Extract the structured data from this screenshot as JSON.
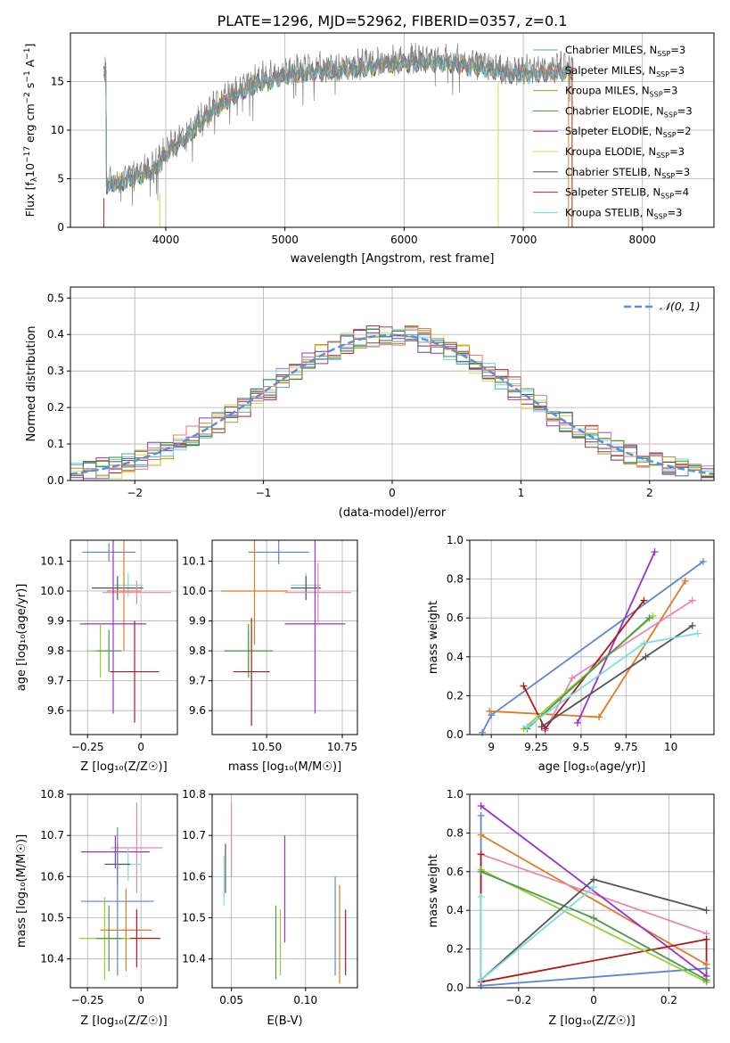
{
  "title": "PLATE=1296, MJD=52962, FIBERID=0357, z=0.1",
  "colors": {
    "chabrier_miles": "#5b9fcf",
    "salpeter_miles": "#e07a7a",
    "kroupa_miles": "#c98c2a",
    "chabrier_elodie": "#3f8f3f",
    "salpeter_elodie": "#9b30b8",
    "kroupa_elodie": "#d8d84a",
    "chabrier_stelib": "#555555",
    "salpeter_stelib": "#b22222",
    "kroupa_stelib": "#6fd6dc",
    "gauss": "#5b8fd6",
    "royal": "#5b86d6",
    "orange": "#e07a20",
    "pink": "#e985b5",
    "violet": "#9932cc",
    "darkred": "#b01818",
    "lime": "#9acd32",
    "green": "#4a9a4a",
    "teal": "#2aa7a7",
    "gray": "#555555",
    "cyan": "#7adfe0"
  },
  "chart_data": [
    {
      "type": "line",
      "title": "PLATE=1296, MJD=52962, FIBERID=0357, z=0.1",
      "xlabel": "wavelength [Angstrom, rest frame]",
      "ylabel": "Flux [f_λ10^-17 erg cm^-2 s^-1 A^-1]",
      "xlim": [
        3200,
        8600
      ],
      "ylim": [
        0,
        20
      ],
      "xticks": [
        4000,
        5000,
        6000,
        7000,
        8000
      ],
      "yticks": [
        0,
        5,
        10,
        15
      ],
      "legend_position": "right",
      "legend": [
        {
          "base": "Chabrier MILES, N",
          "sub": "SSP",
          "tail": "=3",
          "color": "chabrier_miles"
        },
        {
          "base": "Salpeter MILES, N",
          "sub": "SSP",
          "tail": "=3",
          "color": "salpeter_miles"
        },
        {
          "base": "Kroupa MILES, N",
          "sub": "SSP",
          "tail": "=3",
          "color": "kroupa_miles"
        },
        {
          "base": "Chabrier ELODIE, N",
          "sub": "SSP",
          "tail": "=3",
          "color": "chabrier_elodie"
        },
        {
          "base": "Salpeter ELODIE, N",
          "sub": "SSP",
          "tail": "=2",
          "color": "salpeter_elodie"
        },
        {
          "base": "Kroupa ELODIE, N",
          "sub": "SSP",
          "tail": "=3",
          "color": "kroupa_elodie"
        },
        {
          "base": "Chabrier STELIB, N",
          "sub": "SSP",
          "tail": "=3",
          "color": "chabrier_stelib"
        },
        {
          "base": "Salpeter STELIB, N",
          "sub": "SSP",
          "tail": "=4",
          "color": "salpeter_stelib"
        },
        {
          "base": "Kroupa STELIB, N",
          "sub": "SSP",
          "tail": "=3",
          "color": "kroupa_stelib"
        }
      ],
      "continuum": [
        [
          3500,
          4.6
        ],
        [
          3700,
          5.4
        ],
        [
          3900,
          6.2
        ],
        [
          4000,
          8.0
        ],
        [
          4200,
          10.0
        ],
        [
          4400,
          12.5
        ],
        [
          4600,
          14.2
        ],
        [
          4800,
          15.4
        ],
        [
          5000,
          16.0
        ],
        [
          5200,
          16.4
        ],
        [
          5500,
          16.6
        ],
        [
          5800,
          17.1
        ],
        [
          6100,
          17.4
        ],
        [
          6400,
          17.3
        ],
        [
          6700,
          16.8
        ],
        [
          6900,
          16.2
        ],
        [
          7100,
          16.3
        ],
        [
          7400,
          16.5
        ]
      ],
      "spikes": [
        {
          "x": 3480,
          "y0": 0,
          "y1": 3.0,
          "color": "salpeter_stelib"
        },
        {
          "x": 3950,
          "y0": 0,
          "y1": 3.5,
          "color": "kroupa_elodie"
        },
        {
          "x": 6790,
          "y0": 0,
          "y1": 15.0,
          "color": "kroupa_elodie"
        },
        {
          "x": 7410,
          "y0": 0,
          "y1": 16.5,
          "color": "salpeter_stelib"
        },
        {
          "x": 7380,
          "y0": 0,
          "y1": 16.0,
          "color": "kroupa_miles"
        }
      ]
    },
    {
      "type": "line",
      "xlabel": "(data-model)/error",
      "ylabel": "Normed distribution",
      "xlim": [
        -2.5,
        2.5
      ],
      "ylim": [
        0,
        0.53
      ],
      "xticks": [
        -2,
        -1,
        0,
        1,
        2
      ],
      "yticks": [
        0.0,
        0.1,
        0.2,
        0.3,
        0.4,
        0.5
      ],
      "legend": "𝒩(0, 1)",
      "legend_position": "top-right",
      "bin_width": 0.1,
      "bins_start": -2.5,
      "histograms": [
        {
          "color": "salpeter_elodie",
          "amp": 0.4,
          "sigma": 1.0,
          "noise": 0.035,
          "seed": 3
        },
        {
          "color": "salpeter_stelib",
          "amp": 0.4,
          "sigma": 0.98,
          "noise": 0.03,
          "seed": 7
        },
        {
          "color": "kroupa_elodie",
          "amp": 0.41,
          "sigma": 0.96,
          "noise": 0.035,
          "seed": 11
        },
        {
          "color": "kroupa_miles",
          "amp": 0.4,
          "sigma": 1.0,
          "noise": 0.03,
          "seed": 13
        },
        {
          "color": "chabrier_miles",
          "amp": 0.4,
          "sigma": 1.0,
          "noise": 0.03,
          "seed": 17
        },
        {
          "color": "kroupa_stelib",
          "amp": 0.4,
          "sigma": 0.99,
          "noise": 0.03,
          "seed": 19
        },
        {
          "color": "chabrier_stelib",
          "amp": 0.39,
          "sigma": 1.01,
          "noise": 0.03,
          "seed": 23
        },
        {
          "color": "chabrier_elodie",
          "amp": 0.4,
          "sigma": 1.0,
          "noise": 0.025,
          "seed": 29
        },
        {
          "color": "salpeter_miles",
          "amp": 0.4,
          "sigma": 1.0,
          "noise": 0.03,
          "seed": 31
        }
      ]
    },
    {
      "type": "scatter",
      "xlabel": "Z [log₁₀(Z/Z☉)]",
      "ylabel": "age  [log₁₀(age/yr)]",
      "xlim": [
        -0.33,
        0.17
      ],
      "ylim": [
        9.52,
        10.17
      ],
      "xticks": [
        -0.25,
        0.0
      ],
      "yticks": [
        9.6,
        9.7,
        9.8,
        9.9,
        10.0,
        10.1
      ],
      "errbars": [
        {
          "x": -0.15,
          "y": 10.13,
          "xerr": 0.125,
          "yerr": 0.03,
          "color": "royal"
        },
        {
          "x": -0.06,
          "y": 10.02,
          "xerr": 0.07,
          "yerr": 0.04,
          "color": "cyan"
        },
        {
          "x": -0.11,
          "y": 10.01,
          "xerr": 0.12,
          "yerr": 0.04,
          "color": "gray"
        },
        {
          "x": -0.08,
          "y": 10.0,
          "xerr": 0.08,
          "yerr": 0.2,
          "color": "orange"
        },
        {
          "x": -0.02,
          "y": 9.995,
          "xerr": 0.16,
          "yerr": 0.04,
          "color": "pink"
        },
        {
          "x": -0.13,
          "y": 9.89,
          "xerr": 0.155,
          "yerr": 0.3,
          "color": "violet"
        },
        {
          "x": -0.19,
          "y": 9.8,
          "xerr": 0.06,
          "yerr": 0.09,
          "color": "lime"
        },
        {
          "x": -0.15,
          "y": 9.8,
          "xerr": 0.06,
          "yerr": 0.07,
          "color": "green"
        },
        {
          "x": -0.03,
          "y": 9.73,
          "xerr": 0.115,
          "yerr": 0.17,
          "color": "darkred"
        }
      ]
    },
    {
      "type": "scatter",
      "xlabel": "mass [log₁₀(M/M☉)]",
      "ylabel": "",
      "xlim": [
        10.32,
        10.8
      ],
      "ylim": [
        9.52,
        10.17
      ],
      "xticks": [
        10.5,
        10.75
      ],
      "yticks": [
        9.6,
        9.7,
        9.8,
        9.9,
        10.0,
        10.1
      ],
      "errbars": [
        {
          "x": 10.54,
          "y": 10.13,
          "xerr": 0.1,
          "yerr": 0.04,
          "color": "royal"
        },
        {
          "x": 10.63,
          "y": 10.02,
          "xerr": 0.05,
          "yerr": 0.04,
          "color": "cyan"
        },
        {
          "x": 10.63,
          "y": 10.01,
          "xerr": 0.05,
          "yerr": 0.04,
          "color": "gray"
        },
        {
          "x": 10.46,
          "y": 10.0,
          "xerr": 0.11,
          "yerr": 0.18,
          "color": "orange"
        },
        {
          "x": 10.67,
          "y": 9.995,
          "xerr": 0.11,
          "yerr": 0.1,
          "color": "pink"
        },
        {
          "x": 10.66,
          "y": 9.89,
          "xerr": 0.1,
          "yerr": 0.3,
          "color": "violet"
        },
        {
          "x": 10.44,
          "y": 9.8,
          "xerr": 0.08,
          "yerr": 0.07,
          "color": "lime"
        },
        {
          "x": 10.44,
          "y": 9.8,
          "xerr": 0.08,
          "yerr": 0.09,
          "color": "green"
        },
        {
          "x": 10.45,
          "y": 9.73,
          "xerr": 0.06,
          "yerr": 0.18,
          "color": "darkred"
        }
      ]
    },
    {
      "type": "line",
      "xlabel": "age  [log₁₀(age/yr)]",
      "ylabel": "mass weight",
      "xlim": [
        8.88,
        10.24
      ],
      "ylim": [
        0,
        1.0
      ],
      "xticks": [
        9.0,
        9.25,
        9.5,
        9.75,
        10.0
      ],
      "yticks": [
        0.0,
        0.2,
        0.4,
        0.6,
        0.8,
        1.0
      ],
      "series": [
        {
          "color": "royal",
          "points": [
            [
              8.95,
              0.01
            ],
            [
              9.0,
              0.1
            ],
            [
              10.18,
              0.89
            ]
          ]
        },
        {
          "color": "orange",
          "points": [
            [
              8.99,
              0.12
            ],
            [
              9.6,
              0.09
            ],
            [
              10.08,
              0.79
            ]
          ]
        },
        {
          "color": "pink",
          "points": [
            [
              9.3,
              0.02
            ],
            [
              9.45,
              0.29
            ],
            [
              10.12,
              0.69
            ]
          ]
        },
        {
          "color": "violet",
          "points": [
            [
              9.48,
              0.06
            ],
            [
              9.91,
              0.94
            ]
          ]
        },
        {
          "color": "darkred",
          "points": [
            [
              9.18,
              0.25
            ],
            [
              9.3,
              0.03
            ],
            [
              9.85,
              0.69
            ]
          ]
        },
        {
          "color": "lime",
          "points": [
            [
              9.18,
              0.03
            ],
            [
              9.9,
              0.61
            ]
          ]
        },
        {
          "color": "green",
          "points": [
            [
              9.2,
              0.03
            ],
            [
              9.88,
              0.6
            ]
          ]
        },
        {
          "color": "gray",
          "points": [
            [
              9.28,
              0.04
            ],
            [
              9.86,
              0.4
            ],
            [
              10.12,
              0.56
            ]
          ]
        },
        {
          "color": "cyan",
          "points": [
            [
              9.2,
              0.04
            ],
            [
              9.85,
              0.47
            ],
            [
              10.15,
              0.52
            ]
          ]
        }
      ]
    },
    {
      "type": "scatter",
      "xlabel": "Z [log₁₀(Z/Z☉)]",
      "ylabel": "mass [log₁₀(M/M☉)]",
      "xlim": [
        -0.33,
        0.17
      ],
      "ylim": [
        10.33,
        10.8
      ],
      "xticks": [
        -0.25,
        0.0
      ],
      "yticks": [
        10.4,
        10.5,
        10.6,
        10.7,
        10.8
      ],
      "errbars": [
        {
          "x": -0.02,
          "y": 10.67,
          "xerr": 0.12,
          "yerr": 0.11,
          "color": "pink"
        },
        {
          "x": -0.12,
          "y": 10.66,
          "xerr": 0.16,
          "yerr": 0.04,
          "color": "violet"
        },
        {
          "x": -0.06,
          "y": 10.63,
          "xerr": 0.06,
          "yerr": 0.04,
          "color": "cyan"
        },
        {
          "x": -0.11,
          "y": 10.63,
          "xerr": 0.06,
          "yerr": 0.05,
          "color": "gray"
        },
        {
          "x": -0.11,
          "y": 10.54,
          "xerr": 0.17,
          "yerr": 0.18,
          "color": "royal"
        },
        {
          "x": -0.07,
          "y": 10.47,
          "xerr": 0.12,
          "yerr": 0.1,
          "color": "orange"
        },
        {
          "x": -0.02,
          "y": 10.45,
          "xerr": 0.11,
          "yerr": 0.07,
          "color": "darkred"
        },
        {
          "x": -0.17,
          "y": 10.45,
          "xerr": 0.12,
          "yerr": 0.1,
          "color": "lime"
        },
        {
          "x": -0.15,
          "y": 10.45,
          "xerr": 0.06,
          "yerr": 0.08,
          "color": "green"
        }
      ]
    },
    {
      "type": "scatter",
      "xlabel": "E(B-V)",
      "ylabel": "",
      "xlim": [
        0.037,
        0.135
      ],
      "ylim": [
        10.33,
        10.8
      ],
      "xticks": [
        0.05,
        0.1
      ],
      "yticks": [
        10.4,
        10.5,
        10.6,
        10.7,
        10.8
      ],
      "errbars": [
        {
          "x": 0.05,
          "y": 10.69,
          "xerr": 0,
          "yerr": 0.09,
          "color": "pink"
        },
        {
          "x": 0.046,
          "y": 10.62,
          "xerr": 0,
          "yerr": 0.06,
          "color": "gray"
        },
        {
          "x": 0.045,
          "y": 10.59,
          "xerr": 0,
          "yerr": 0.06,
          "color": "cyan"
        },
        {
          "x": 0.086,
          "y": 10.57,
          "xerr": 0,
          "yerr": 0.13,
          "color": "violet"
        },
        {
          "x": 0.08,
          "y": 10.44,
          "xerr": 0,
          "yerr": 0.09,
          "color": "green"
        },
        {
          "x": 0.083,
          "y": 10.44,
          "xerr": 0,
          "yerr": 0.08,
          "color": "lime"
        },
        {
          "x": 0.12,
          "y": 10.48,
          "xerr": 0,
          "yerr": 0.12,
          "color": "royal"
        },
        {
          "x": 0.123,
          "y": 10.46,
          "xerr": 0,
          "yerr": 0.12,
          "color": "orange"
        },
        {
          "x": 0.127,
          "y": 10.44,
          "xerr": 0,
          "yerr": 0.08,
          "color": "darkred"
        }
      ]
    },
    {
      "type": "line",
      "xlabel": "Z [log₁₀(Z/Z☉)]",
      "ylabel": "mass weight",
      "xlim": [
        -0.33,
        0.32
      ],
      "ylim": [
        0,
        1.0
      ],
      "xticks": [
        -0.2,
        0.0,
        0.2
      ],
      "yticks": [
        0.0,
        0.2,
        0.4,
        0.6,
        0.8,
        1.0
      ],
      "series": [
        {
          "color": "royal",
          "points": [
            [
              -0.3,
              0.89
            ],
            [
              -0.3,
              0.01
            ],
            [
              0.3,
              0.1
            ]
          ]
        },
        {
          "color": "orange",
          "points": [
            [
              -0.3,
              0.79
            ],
            [
              0.3,
              0.12
            ]
          ]
        },
        {
          "color": "pink",
          "points": [
            [
              -0.3,
              0.69
            ],
            [
              0.3,
              0.28
            ]
          ]
        },
        {
          "color": "violet",
          "points": [
            [
              -0.3,
              0.94
            ],
            [
              0.3,
              0.06
            ]
          ]
        },
        {
          "color": "darkred",
          "points": [
            [
              -0.3,
              0.69
            ],
            [
              -0.3,
              0.03
            ],
            [
              0.3,
              0.25
            ],
            [
              0.3,
              0.03
            ]
          ]
        },
        {
          "color": "lime",
          "points": [
            [
              -0.3,
              0.61
            ],
            [
              0.3,
              0.03
            ]
          ]
        },
        {
          "color": "green",
          "points": [
            [
              -0.3,
              0.6
            ],
            [
              0.0,
              0.36
            ],
            [
              0.3,
              0.04
            ]
          ]
        },
        {
          "color": "gray",
          "points": [
            [
              -0.3,
              0.04
            ],
            [
              0.0,
              0.56
            ],
            [
              0.3,
              0.4
            ]
          ]
        },
        {
          "color": "cyan",
          "points": [
            [
              -0.3,
              0.47
            ],
            [
              -0.3,
              0.04
            ],
            [
              0.0,
              0.52
            ]
          ]
        }
      ]
    }
  ]
}
